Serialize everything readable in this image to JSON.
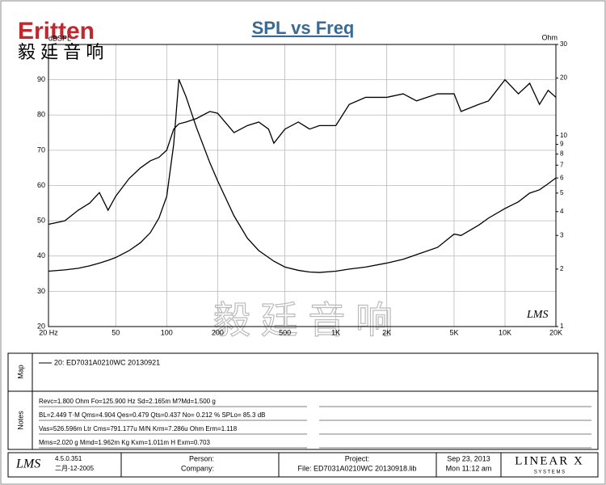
{
  "logo": {
    "brand": "Eritten",
    "chinese": "毅 廷 音 响"
  },
  "watermark": "毅 廷 音 响",
  "chart_data": {
    "type": "line",
    "title": "SPL vs Freq",
    "ylabel": "dBSPL",
    "y2label": "Ohm",
    "xscale": "log",
    "y2scale": "log",
    "grid": true,
    "x": [
      20,
      25,
      30,
      35,
      40,
      45,
      50,
      60,
      70,
      80,
      90,
      100,
      110,
      118,
      130,
      150,
      180,
      200,
      250,
      300,
      350,
      400,
      430,
      500,
      600,
      700,
      800,
      1000,
      1200,
      1500,
      2000,
      2500,
      3000,
      4000,
      5000,
      5500,
      7000,
      8000,
      10000,
      12000,
      14000,
      16000,
      18000,
      20000
    ],
    "xlim": [
      20,
      20000
    ],
    "xticks": [
      {
        "value": 20,
        "label": "20 Hz"
      },
      50,
      100,
      200,
      500,
      {
        "value": 1000,
        "label": "1K"
      },
      {
        "value": 2000,
        "label": "2K"
      },
      {
        "value": 5000,
        "label": "5K"
      },
      {
        "value": 10000,
        "label": "10K"
      },
      {
        "value": 20000,
        "label": "20K"
      }
    ],
    "ylim": [
      20,
      100
    ],
    "yticks": [
      20,
      30,
      40,
      50,
      60,
      70,
      80,
      90
    ],
    "y2lim": [
      1,
      30
    ],
    "y2ticks": [
      1,
      2,
      3,
      4,
      5,
      6,
      7,
      8,
      9,
      10,
      20,
      30
    ],
    "series": [
      {
        "name": "20: ED7031A0210WC  20130921",
        "color": "#000000",
        "values": [
          49,
          50,
          53,
          55,
          58,
          53,
          57,
          62,
          65,
          67,
          68,
          70,
          76,
          77.5,
          78,
          79,
          81,
          80.5,
          75,
          77,
          78,
          76,
          72,
          76,
          78,
          76,
          77,
          77,
          83,
          85,
          85,
          86,
          84,
          86,
          86,
          81,
          83,
          84,
          90,
          86,
          89,
          83,
          87,
          85
        ]
      },
      {
        "color": "#000000",
        "axis": "y2",
        "values": [
          1.95,
          1.98,
          2.02,
          2.08,
          2.15,
          2.22,
          2.3,
          2.5,
          2.75,
          3.1,
          3.7,
          4.8,
          9,
          19.7,
          16,
          11,
          7.2,
          5.8,
          3.8,
          2.9,
          2.5,
          2.3,
          2.2,
          2.05,
          1.97,
          1.93,
          1.92,
          1.95,
          2.0,
          2.05,
          2.15,
          2.25,
          2.38,
          2.6,
          3.05,
          3.0,
          3.4,
          3.7,
          4.15,
          4.5,
          5.0,
          5.2,
          5.6,
          6.0
        ]
      }
    ]
  },
  "brand_mark": "LMS",
  "map": {
    "label": "Map"
  },
  "notes": {
    "label": "Notes",
    "lines": [
      "Revc=1.800 Ohm  Fo=125.900 Hz  Sd=2.165m M?Md=1.500 g",
      "BL=2.449 T·M  Qms=4.904  Qes=0.479  Qts=0.437  No= 0.212 %  SPLo= 85.3 dB",
      "Vas=526.596m Ltr  Cms=791.177u M/N  Krm=7.286u Ohm  Erm=1.118",
      "Mms=2.020 g  Mmd=1.962m Kg  Kxm=1.011m H  Exm=0.703"
    ]
  },
  "footer": {
    "version": "4.5.0.351",
    "date_built": "二月-12-2005",
    "person": "Person:",
    "company": "Company:",
    "project": "Project:",
    "file": "File: ED7031A0210WC  20130918.lib",
    "date": "Sep 23, 2013",
    "time": "Mon 11:12 am",
    "maker": "LINEAR X",
    "maker_sub": "S Y S T E M S"
  }
}
